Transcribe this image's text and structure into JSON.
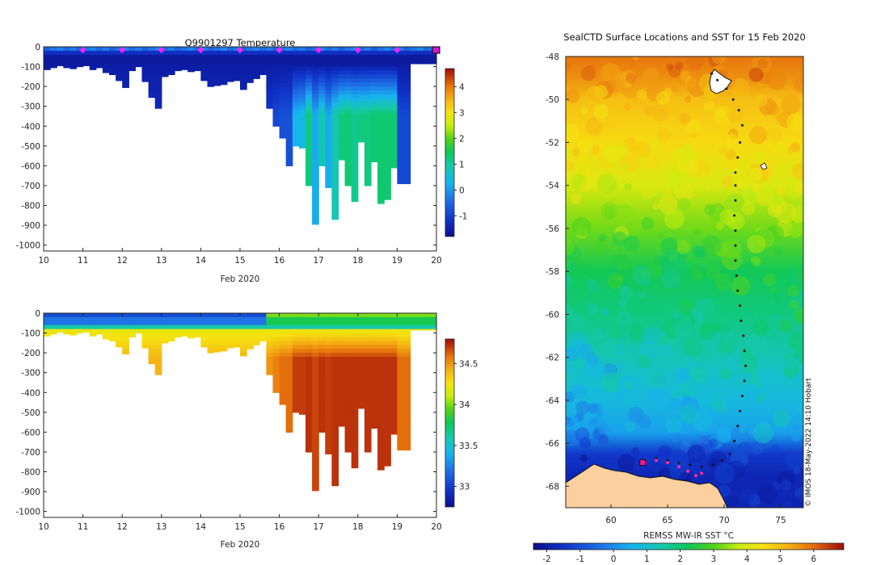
{
  "chart_data": [
    {
      "type": "heatmap",
      "title": "Q9901297  Temperature",
      "xlabel": "Feb 2020",
      "ylabel": "",
      "xlim": [
        10,
        20
      ],
      "ylim": [
        -1030,
        0
      ],
      "x_ticks": [
        "10",
        "11",
        "12",
        "13",
        "14",
        "15",
        "16",
        "17",
        "18",
        "19",
        "20"
      ],
      "y_ticks": [
        "0",
        "-100",
        "-200",
        "-300",
        "-400",
        "-500",
        "-600",
        "-700",
        "-800",
        "-900",
        "-1000"
      ],
      "colorbar": {
        "ticks": [
          "4",
          "3",
          "2",
          "1",
          "0",
          "-1"
        ],
        "range": [
          -1.8,
          4.7
        ]
      },
      "profile_marker_days": [
        11,
        12,
        13,
        14,
        15,
        16,
        17,
        18,
        19,
        20
      ],
      "cast_depths": [
        -115,
        -105,
        -95,
        -105,
        -110,
        -100,
        -95,
        -115,
        -105,
        -130,
        -140,
        -170,
        -205,
        -120,
        -100,
        -175,
        -255,
        -310,
        -150,
        -140,
        -120,
        -115,
        -125,
        -120,
        -170,
        -200,
        -195,
        -190,
        -175,
        -170,
        -215,
        -180,
        -160,
        -140,
        -310,
        -400,
        -460,
        -600,
        -500,
        -510,
        -700,
        -895,
        -600,
        -710,
        -870,
        -570,
        -700,
        -780,
        -480,
        -700,
        -580,
        -790,
        -770,
        -610,
        -690,
        -690,
        -85,
        -85,
        -85,
        -85
      ],
      "deep_temps": [
        -1.3,
        -1.3,
        -1.3,
        -1.3,
        -1.3,
        -1.3,
        -1.3,
        -1.3,
        -1.3,
        -1.3,
        -1.3,
        -1.3,
        -1.3,
        -1.3,
        -1.3,
        -1.3,
        -1.3,
        -1.3,
        -1.3,
        -1.3,
        -1.3,
        -1.3,
        -1.3,
        -1.3,
        -1.3,
        -1.3,
        -1.3,
        -1.3,
        -1.3,
        -1.3,
        -1.3,
        -1.3,
        -1.3,
        -1.3,
        -1.1,
        -0.9,
        -0.8,
        -0.8,
        0.3,
        0.4,
        1.2,
        0.2,
        0.8,
        0.2,
        0.8,
        1.2,
        1.3,
        1.1,
        1.2,
        1.2,
        1.3,
        1.3,
        1.3,
        1.3,
        -0.9,
        -0.9,
        -1.3,
        -1.3,
        -1.3,
        -1.3
      ]
    },
    {
      "type": "heatmap",
      "title": "",
      "xlabel": "Feb 2020",
      "ylabel": "",
      "xlim": [
        10,
        20
      ],
      "ylim": [
        -1030,
        0
      ],
      "x_ticks": [
        "10",
        "11",
        "12",
        "13",
        "14",
        "15",
        "16",
        "17",
        "18",
        "19",
        "20"
      ],
      "y_ticks": [
        "0",
        "-100",
        "-200",
        "-300",
        "-400",
        "-500",
        "-600",
        "-700",
        "-800",
        "-900",
        "-1000"
      ],
      "colorbar": {
        "ticks": [
          "34.5",
          "34",
          "33.5",
          "33"
        ],
        "range": [
          32.75,
          34.8
        ]
      },
      "deep_salinity": [
        34.42,
        34.42,
        34.42,
        34.42,
        34.42,
        34.42,
        34.42,
        34.42,
        34.42,
        34.42,
        34.42,
        34.42,
        34.42,
        34.42,
        34.42,
        34.42,
        34.42,
        34.42,
        34.42,
        34.42,
        34.42,
        34.42,
        34.42,
        34.42,
        34.42,
        34.42,
        34.42,
        34.42,
        34.42,
        34.42,
        34.42,
        34.42,
        34.42,
        34.42,
        34.5,
        34.55,
        34.6,
        34.6,
        34.7,
        34.7,
        34.72,
        34.68,
        34.72,
        34.7,
        34.72,
        34.72,
        34.72,
        34.72,
        34.72,
        34.72,
        34.72,
        34.72,
        34.72,
        34.72,
        34.6,
        34.6,
        34.4,
        34.4,
        34.4,
        34.4
      ]
    },
    {
      "type": "heatmap",
      "title": "SealCTD Surface Locations and SST for 15 Feb 2020",
      "xlabel": "REMSS MW-IR SST °C",
      "ylabel": "",
      "x_ticks": [
        "60",
        "65",
        "70",
        "75"
      ],
      "y_ticks": [
        "-48",
        "-50",
        "-52",
        "-54",
        "-56",
        "-58",
        "-60",
        "-62",
        "-64",
        "-66",
        "-68"
      ],
      "lon_range": [
        56,
        77
      ],
      "lat_range": [
        -69,
        -48
      ],
      "colorbar": {
        "ticks": [
          "-2",
          "-1",
          "0",
          "1",
          "2",
          "3",
          "4",
          "5",
          "6"
        ],
        "range": [
          -2.4,
          6.9
        ]
      },
      "sst_bands": [
        {
          "lat": -48,
          "sst": 5.9
        },
        {
          "lat": -49,
          "sst": 5.6
        },
        {
          "lat": -50,
          "sst": 5.0
        },
        {
          "lat": -52,
          "sst": 4.6
        },
        {
          "lat": -54,
          "sst": 4.0
        },
        {
          "lat": -56,
          "sst": 3.2
        },
        {
          "lat": -58,
          "sst": 2.3
        },
        {
          "lat": -60,
          "sst": 1.9
        },
        {
          "lat": -62,
          "sst": 1.3
        },
        {
          "lat": -64,
          "sst": 0.8
        },
        {
          "lat": -65.5,
          "sst": 0.3
        },
        {
          "lat": -66.5,
          "sst": -1.4
        },
        {
          "lat": -67.5,
          "sst": -1.8
        },
        {
          "lat": -69,
          "sst": -1.8
        }
      ],
      "track": [
        {
          "lon": 68.9,
          "lat": -48.8
        },
        {
          "lon": 69.4,
          "lat": -49.1
        },
        {
          "lon": 70.2,
          "lat": -49.5
        },
        {
          "lon": 70.8,
          "lat": -50.0
        },
        {
          "lon": 71.3,
          "lat": -50.5
        },
        {
          "lon": 71.6,
          "lat": -51.2
        },
        {
          "lon": 71.4,
          "lat": -52.0
        },
        {
          "lon": 71.2,
          "lat": -52.7
        },
        {
          "lon": 71.0,
          "lat": -53.4
        },
        {
          "lon": 71.0,
          "lat": -54.0
        },
        {
          "lon": 71.0,
          "lat": -54.7
        },
        {
          "lon": 70.9,
          "lat": -55.4
        },
        {
          "lon": 71.0,
          "lat": -56.1
        },
        {
          "lon": 71.0,
          "lat": -56.8
        },
        {
          "lon": 71.0,
          "lat": -57.5
        },
        {
          "lon": 71.1,
          "lat": -58.2
        },
        {
          "lon": 71.2,
          "lat": -58.9
        },
        {
          "lon": 71.4,
          "lat": -59.6
        },
        {
          "lon": 71.5,
          "lat": -60.3
        },
        {
          "lon": 71.7,
          "lat": -61.0
        },
        {
          "lon": 71.8,
          "lat": -61.7
        },
        {
          "lon": 71.9,
          "lat": -62.4
        },
        {
          "lon": 71.8,
          "lat": -63.1
        },
        {
          "lon": 71.6,
          "lat": -63.8
        },
        {
          "lon": 71.4,
          "lat": -64.5
        },
        {
          "lon": 71.2,
          "lat": -65.2
        },
        {
          "lon": 70.9,
          "lat": -65.9
        },
        {
          "lon": 70.5,
          "lat": -66.5
        },
        {
          "lon": 69.8,
          "lat": -66.8
        },
        {
          "lon": 69.0,
          "lat": -67.0
        },
        {
          "lon": 68.0,
          "lat": -67.1
        },
        {
          "lon": 67.0,
          "lat": -67.0
        },
        {
          "lon": 66.0,
          "lat": -66.9
        },
        {
          "lon": 65.0,
          "lat": -66.8
        },
        {
          "lon": 64.0,
          "lat": -66.7
        },
        {
          "lon": 63.0,
          "lat": -66.8
        }
      ],
      "pink_track": [
        {
          "lon": 63.0,
          "lat": -66.9
        },
        {
          "lon": 64.0,
          "lat": -66.8
        },
        {
          "lon": 65.0,
          "lat": -66.9
        },
        {
          "lon": 66.0,
          "lat": -67.1
        },
        {
          "lon": 66.8,
          "lat": -67.3
        },
        {
          "lon": 67.5,
          "lat": -67.5
        },
        {
          "lon": 68.0,
          "lat": -67.4
        }
      ],
      "current_position": {
        "lon": 62.8,
        "lat": -66.9
      },
      "credit": "© IMOS 18-May-2022 14:10 Hobart"
    }
  ]
}
